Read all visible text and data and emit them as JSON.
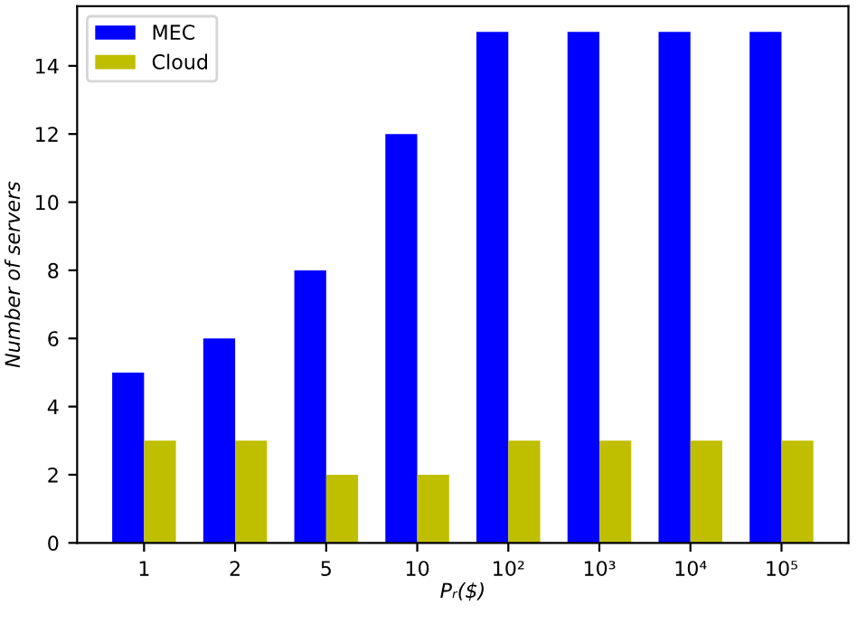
{
  "chart_data": {
    "type": "bar",
    "xlabel": "Pᵣ($)",
    "ylabel": "Number of servers",
    "categories": [
      "1",
      "2",
      "5",
      "10",
      "10²",
      "10³",
      "10⁴",
      "10⁵"
    ],
    "series": [
      {
        "name": "MEC",
        "color": "#0000ff",
        "values": [
          5,
          6,
          8,
          12,
          15,
          15,
          15,
          15
        ]
      },
      {
        "name": "Cloud",
        "color": "#bfbf00",
        "values": [
          3,
          3,
          2,
          2,
          3,
          3,
          3,
          3
        ]
      }
    ],
    "ylim": [
      0,
      15.75
    ],
    "yticks": [
      0,
      2,
      4,
      6,
      8,
      10,
      12,
      14
    ],
    "legend": "top left",
    "grid": false
  }
}
